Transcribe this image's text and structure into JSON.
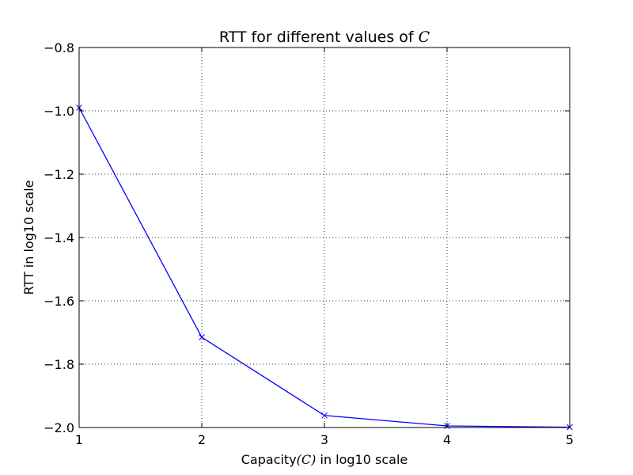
{
  "chart_data": {
    "type": "line",
    "title_text": "RTT for different values of ",
    "title_math": "C",
    "xlabel_pre": "Capacity",
    "xlabel_math": "(C)",
    "xlabel_post": " in log10 scale",
    "ylabel": "RTT in log10 scale",
    "xlim": [
      1,
      5
    ],
    "ylim": [
      -2.0,
      -0.8
    ],
    "xticks": [
      1,
      2,
      3,
      4,
      5
    ],
    "xtick_labels": [
      "1",
      "2",
      "3",
      "4",
      "5"
    ],
    "yticks": [
      -2.0,
      -1.8,
      -1.6,
      -1.4,
      -1.2,
      -1.0,
      -0.8
    ],
    "ytick_labels": [
      "−2.0",
      "−1.8",
      "−1.6",
      "−1.4",
      "−1.2",
      "−1.0",
      "−0.8"
    ],
    "grid": true,
    "series": [
      {
        "x": [
          1,
          2,
          3,
          4,
          5
        ],
        "y": [
          -0.99,
          -1.715,
          -1.962,
          -1.995,
          -1.999
        ],
        "color": "#0000ff",
        "marker": "x"
      }
    ]
  }
}
